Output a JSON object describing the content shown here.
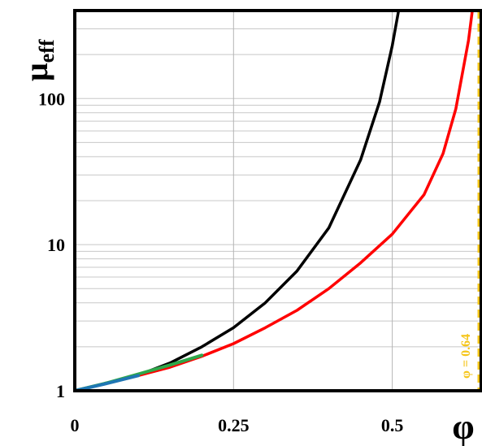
{
  "chart_data": {
    "type": "line",
    "xlabel": "φ",
    "ylabel": "μ",
    "ylabel_sub": "eff",
    "xlim": [
      0,
      0.64
    ],
    "ylim": [
      1,
      400
    ],
    "yscale": "log",
    "grid": true,
    "x_ticks": [
      {
        "value": 0,
        "label": "0"
      },
      {
        "value": 0.25,
        "label": "0.25"
      },
      {
        "value": 0.5,
        "label": "0.5"
      }
    ],
    "y_ticks": [
      {
        "value": 1,
        "label": "1"
      },
      {
        "value": 10,
        "label": "10"
      },
      {
        "value": 100,
        "label": "100"
      }
    ],
    "vline": {
      "x": 0.64,
      "label": "φ = 0.64",
      "color": "#f5c518"
    },
    "series": [
      {
        "color": "#000000",
        "x": [
          0,
          0.05,
          0.1,
          0.15,
          0.2,
          0.25,
          0.3,
          0.35,
          0.4,
          0.45,
          0.48,
          0.5,
          0.51
        ],
        "y": [
          1,
          1.13,
          1.28,
          1.55,
          2.0,
          2.7,
          4.0,
          6.6,
          13,
          38,
          95,
          230,
          400
        ]
      },
      {
        "color": "#ff0000",
        "x": [
          0,
          0.05,
          0.1,
          0.15,
          0.2,
          0.25,
          0.3,
          0.35,
          0.4,
          0.45,
          0.5,
          0.55,
          0.58,
          0.6,
          0.62,
          0.626
        ],
        "y": [
          1,
          1.12,
          1.27,
          1.45,
          1.72,
          2.1,
          2.7,
          3.55,
          5.0,
          7.5,
          11.8,
          22,
          42,
          85,
          250,
          400
        ]
      },
      {
        "color": "#2ea84a",
        "x": [
          0,
          0.05,
          0.1,
          0.15,
          0.2
        ],
        "y": [
          1,
          1.13,
          1.3,
          1.5,
          1.75
        ]
      },
      {
        "color": "#1f77b4",
        "x": [
          0,
          0.05,
          0.1
        ],
        "y": [
          1,
          1.12,
          1.27
        ]
      }
    ]
  }
}
